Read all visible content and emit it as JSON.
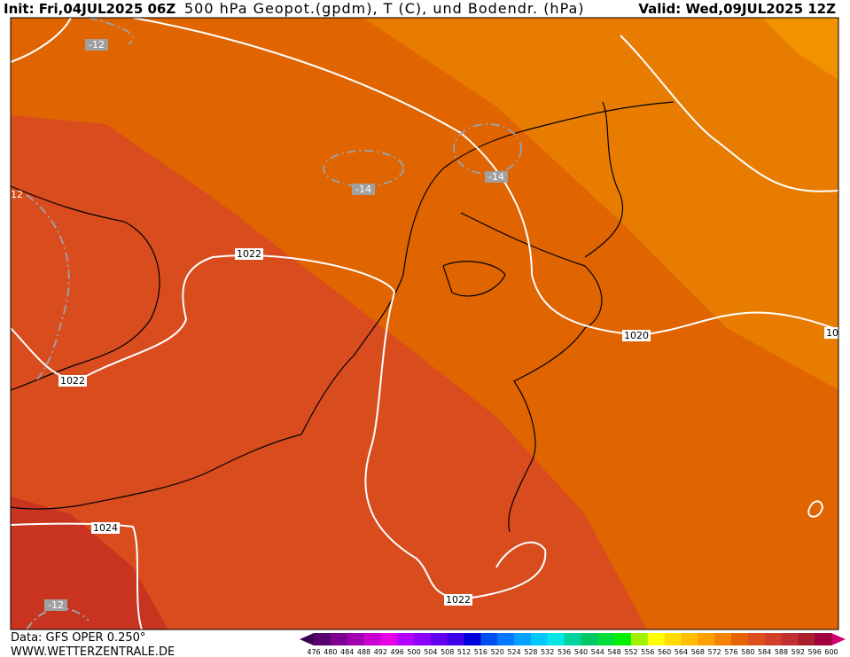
{
  "header": {
    "init": "Init: Fri,04JUL2025 06Z",
    "title": "500 hPa Geopot.(gpdm), T (C), und Bodendr. (hPa)",
    "valid": "Valid: Wed,09JUL2025 12Z"
  },
  "map": {
    "pressure_labels": [
      "1022",
      "1022",
      "1020",
      "10",
      "1024",
      "1022",
      "12"
    ],
    "temperature_labels": [
      "-12",
      "-14",
      "-14",
      "-12"
    ]
  },
  "colorbar": {
    "labels": [
      476,
      480,
      484,
      488,
      492,
      496,
      500,
      504,
      508,
      512,
      516,
      520,
      524,
      528,
      532,
      536,
      540,
      544,
      548,
      552,
      556,
      560,
      564,
      568,
      572,
      576,
      580,
      584,
      588,
      592,
      596,
      600
    ],
    "colors": [
      "#3c0050",
      "#5a006e",
      "#7e008e",
      "#a000b0",
      "#c800d0",
      "#e600e6",
      "#b400ff",
      "#8c00ff",
      "#6400f0",
      "#3c00e6",
      "#0000dc",
      "#0050f0",
      "#0078ff",
      "#00a0ff",
      "#00c8ff",
      "#00e6e6",
      "#00d2a0",
      "#00c864",
      "#00dc3c",
      "#00f000",
      "#a0f000",
      "#ffff00",
      "#ffdc00",
      "#ffbe00",
      "#ffa000",
      "#f58200",
      "#e66400",
      "#dc501e",
      "#d2402a",
      "#c03030",
      "#a82030",
      "#a00040",
      "#d0006e"
    ]
  },
  "footer": {
    "source": "Data: GFS OPER 0.250°",
    "site": "WWW.WETTERZENTRALE.DE"
  }
}
